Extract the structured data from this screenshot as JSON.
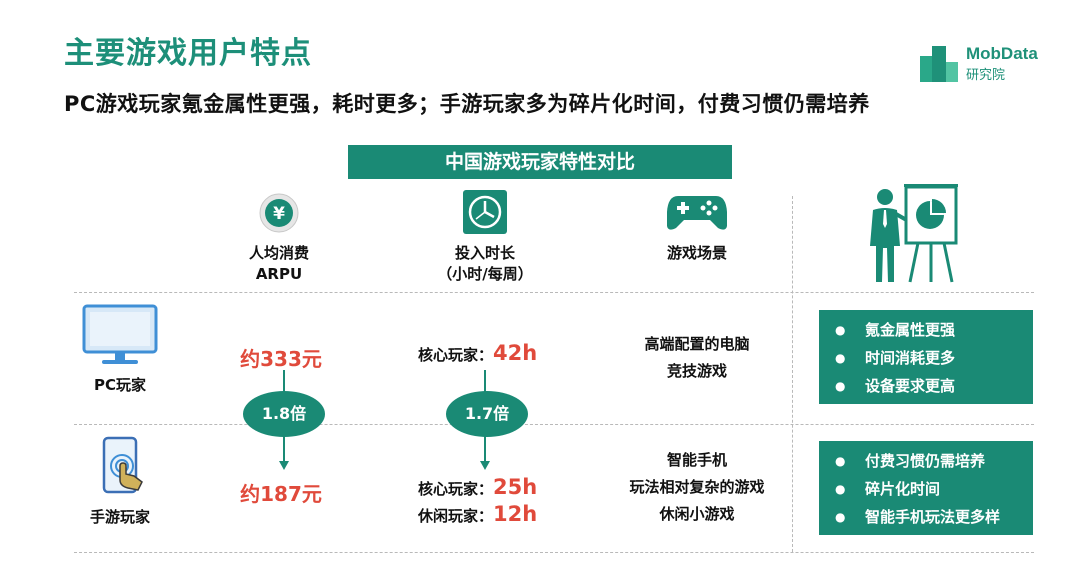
{
  "title": "主要游戏用户特点",
  "subtitle": "PC游戏玩家氪金属性更强，耗时更多；手游玩家多为碎片化时间，付费习惯仍需培养",
  "logo": {
    "brand": "MobData",
    "sub": "研究院"
  },
  "banner": "中国游戏玩家特性对比",
  "columns": {
    "arpu": {
      "line1": "人均消费",
      "line2": "ARPU",
      "icon": "yuan-coin-icon"
    },
    "time": {
      "line1": "投入时长",
      "line2": "（小时/每周）",
      "icon": "clock-icon"
    },
    "scene": {
      "line1": "游戏场景",
      "icon": "gamepad-icon"
    },
    "summary": {
      "icon": "presenter-icon"
    }
  },
  "rows": {
    "pc": {
      "label": "PC玩家",
      "icon": "monitor-icon",
      "arpu": "约333元",
      "time": [
        {
          "label": "核心玩家：",
          "value": "42h"
        }
      ],
      "scene": [
        "高端配置的电脑",
        "竞技游戏"
      ],
      "traits": [
        "氪金属性更强",
        "时间消耗更多",
        "设备要求更高"
      ]
    },
    "mobile": {
      "label": "手游玩家",
      "icon": "smartphone-touch-icon",
      "arpu": "约187元",
      "time": [
        {
          "label": "核心玩家：",
          "value": "25h"
        },
        {
          "label": "休闲玩家：",
          "value": "12h"
        }
      ],
      "scene": [
        "智能手机",
        "玩法相对复杂的游戏",
        "休闲小游戏"
      ],
      "traits": [
        "付费习惯仍需培养",
        "碎片化时间",
        "智能手机玩法更多样"
      ]
    }
  },
  "ratios": {
    "arpu": "1.8倍",
    "time": "1.7倍"
  },
  "colors": {
    "accent": "#1a8a75",
    "highlight": "#e04a3b"
  }
}
